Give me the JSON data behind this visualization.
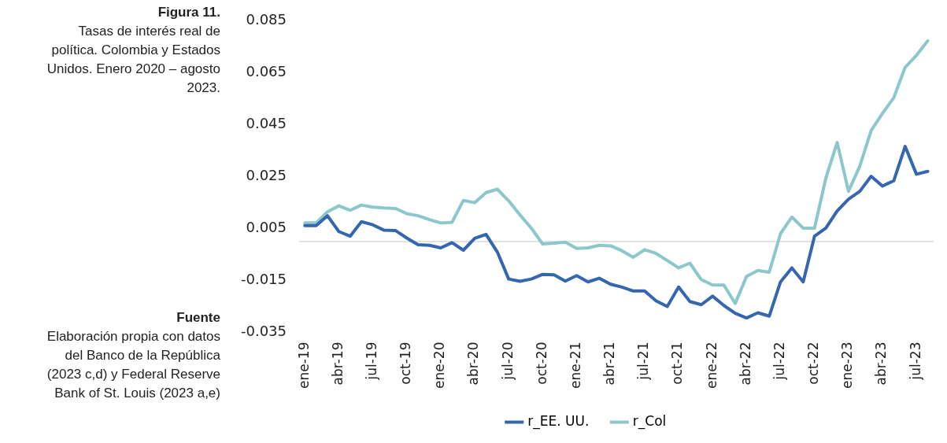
{
  "chart_data": {
    "type": "line",
    "title": "Figura 11.",
    "subtitle": "Tasas de interés real de política. Colombia y Estados Unidos. Enero 2020 – agosto 2023.",
    "annotations": [
      "Fuente",
      "Elaboración propia con datos del Banco de la República (2023 c,d) y Federal Reserve Bank of St. Louis (2023 a,e)"
    ],
    "categories": [
      "ene-19",
      null,
      null,
      "abr-19",
      null,
      null,
      "jul-19",
      null,
      null,
      "oct-19",
      null,
      null,
      "ene-20",
      null,
      null,
      "abr-20",
      null,
      null,
      "jul-20",
      null,
      null,
      "oct-20",
      null,
      null,
      "ene-21",
      null,
      null,
      "abr-21",
      null,
      null,
      "jul-21",
      null,
      null,
      "oct-21",
      null,
      null,
      "ene-22",
      null,
      null,
      "abr-22",
      null,
      null,
      "jul-22",
      null,
      null,
      "oct-22",
      null,
      null,
      "ene-23",
      null,
      null,
      "abr-23",
      null,
      null,
      "jul-23",
      null
    ],
    "series": [
      {
        "name": "r_EE. UU.",
        "color": "#3567b1",
        "values": [
          0.0062,
          0.0062,
          0.01,
          0.0039,
          0.0021,
          0.0077,
          0.0065,
          0.0044,
          0.0043,
          0.0014,
          -0.0012,
          -0.0014,
          -0.0024,
          -0.0004,
          -0.0033,
          0.0013,
          0.0028,
          -0.004,
          -0.0144,
          -0.0153,
          -0.0144,
          -0.0126,
          -0.0128,
          -0.0152,
          -0.0131,
          -0.0155,
          -0.0141,
          -0.0164,
          -0.0175,
          -0.019,
          -0.019,
          -0.0228,
          -0.025,
          -0.0175,
          -0.0231,
          -0.0243,
          -0.021,
          -0.0246,
          -0.0276,
          -0.0294,
          -0.0274,
          -0.0287,
          -0.0155,
          -0.0101,
          -0.0155,
          0.0021,
          0.0052,
          0.0118,
          0.0164,
          0.0194,
          0.0252,
          0.0214,
          0.0235,
          0.0367,
          0.026,
          0.0271
        ]
      },
      {
        "name": "r_Col",
        "color": "#8cc7cc",
        "values": [
          0.0072,
          0.0072,
          0.0115,
          0.0138,
          0.0121,
          0.0141,
          0.0133,
          0.013,
          0.0128,
          0.0108,
          0.01,
          0.0085,
          0.0072,
          0.0075,
          0.0159,
          0.015,
          0.0189,
          0.0202,
          0.0157,
          0.0103,
          0.0052,
          -0.0009,
          -0.0006,
          -0.0002,
          -0.0026,
          -0.0024,
          -0.0014,
          -0.0016,
          -0.0035,
          -0.006,
          -0.0031,
          -0.0045,
          -0.0073,
          -0.0101,
          -0.0083,
          -0.0146,
          -0.0167,
          -0.0167,
          -0.0238,
          -0.0134,
          -0.0111,
          -0.0118,
          0.0031,
          0.0095,
          0.0052,
          0.0052,
          0.0245,
          0.0382,
          0.0194,
          0.0291,
          0.0428,
          0.0494,
          0.0555,
          0.0672,
          0.0718,
          0.0774
        ]
      }
    ],
    "ylim": [
      -0.035,
      0.085
    ],
    "yticks": [
      0.085,
      0.065,
      0.045,
      0.025,
      0.005,
      -0.015,
      -0.035
    ],
    "ref_lines": [
      {
        "axis": "y",
        "value": 0,
        "color": "#d9d9d9"
      }
    ],
    "legend": "bottom",
    "marker": "none",
    "line_style": "solid"
  }
}
